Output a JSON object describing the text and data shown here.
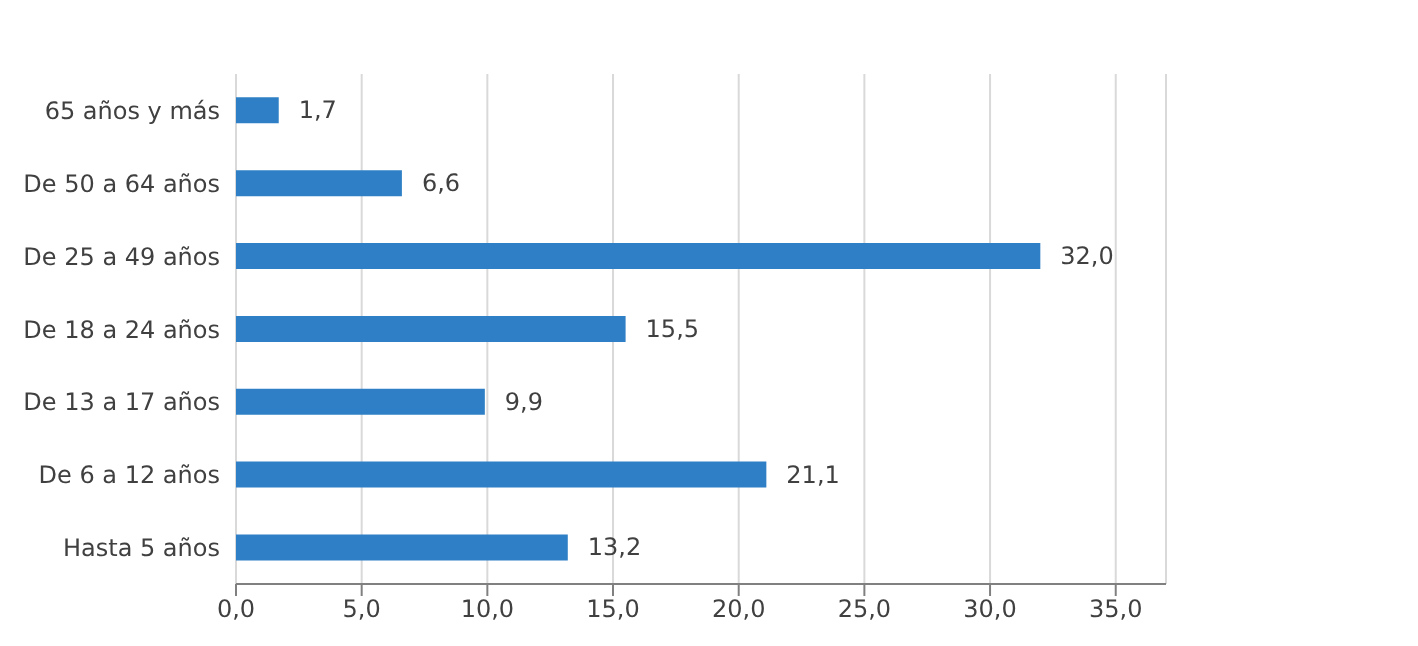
{
  "chart_data": {
    "type": "bar",
    "orientation": "horizontal",
    "categories": [
      "65 años y más",
      "De 50 a 64 años",
      "De 25 a 49 años",
      "De 18 a 24 años",
      "De 13 a 17 años",
      "De 6 a 12 años",
      "Hasta 5 años"
    ],
    "values": [
      1.7,
      6.6,
      32.0,
      15.5,
      9.9,
      21.1,
      13.2
    ],
    "value_labels": [
      "1,7",
      "6,6",
      "32,0",
      "15,5",
      "9,9",
      "21,1",
      "13,2"
    ],
    "color": "#2e7fc5",
    "xlim": [
      0,
      37
    ],
    "xticks": [
      {
        "value": 0,
        "label": "0,0"
      },
      {
        "value": 5,
        "label": "5,0"
      },
      {
        "value": 10,
        "label": "10,0"
      },
      {
        "value": 15,
        "label": "15,0"
      },
      {
        "value": 20,
        "label": "20,0"
      },
      {
        "value": 25,
        "label": "25,0"
      },
      {
        "value": 30,
        "label": "30,0"
      },
      {
        "value": 35,
        "label": "35,0"
      }
    ],
    "grid": "x"
  }
}
